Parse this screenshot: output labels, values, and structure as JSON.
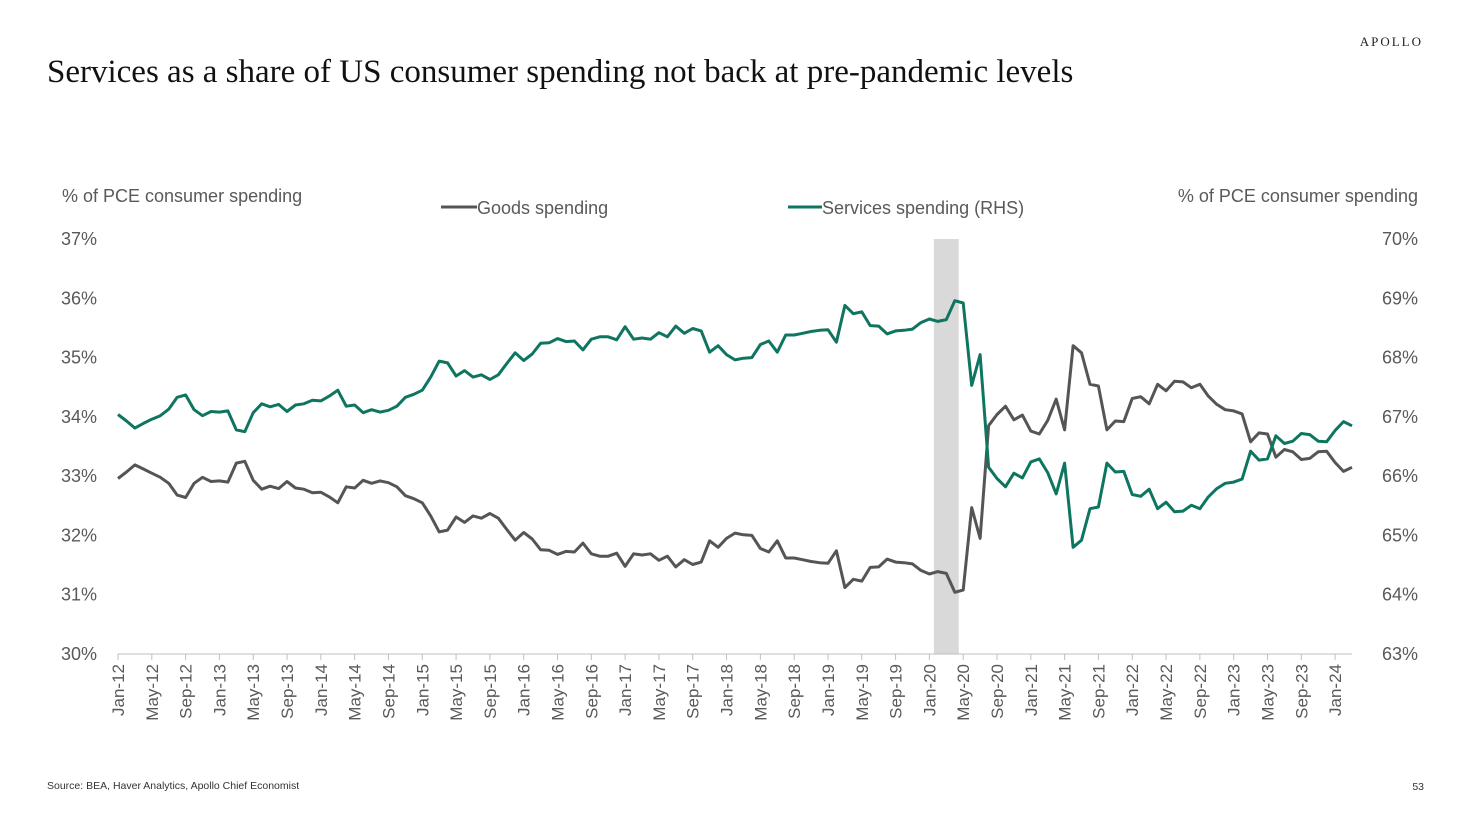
{
  "header": {
    "brand": "APOLLO",
    "title": "Services as a share of US consumer spending not back at pre-pandemic levels"
  },
  "footer": {
    "source": "Source: BEA, Haver Analytics, Apollo Chief Economist",
    "page_number": "53"
  },
  "chart_data": {
    "type": "line",
    "ylabel": "% of PCE consumer spending",
    "y2label": "% of PCE consumer spending",
    "ylim": [
      30,
      37
    ],
    "y2lim": [
      63,
      70
    ],
    "yticks": [
      "37%",
      "36%",
      "35%",
      "34%",
      "33%",
      "32%",
      "31%",
      "30%"
    ],
    "y2ticks": [
      "70%",
      "69%",
      "68%",
      "67%",
      "66%",
      "65%",
      "64%",
      "63%"
    ],
    "x_tick_labels": [
      "Jan-12",
      "May-12",
      "Sep-12",
      "Jan-13",
      "May-13",
      "Sep-13",
      "Jan-14",
      "May-14",
      "Sep-14",
      "Jan-15",
      "May-15",
      "Sep-15",
      "Jan-16",
      "May-16",
      "Sep-16",
      "Jan-17",
      "May-17",
      "Sep-17",
      "Jan-18",
      "May-18",
      "Sep-18",
      "Jan-19",
      "May-19",
      "Sep-19",
      "Jan-20",
      "May-20",
      "Sep-20",
      "Jan-21",
      "May-21",
      "Sep-21",
      "Jan-22",
      "May-22",
      "Sep-22",
      "Jan-23",
      "May-23",
      "Sep-23",
      "Jan-24"
    ],
    "x_start": "Jan-12",
    "recession_shading": [
      "Feb-20",
      "Apr-20"
    ],
    "grid": false,
    "legend": "top-center",
    "colors": {
      "goods": "#555555",
      "services": "#0e7560",
      "recession": "#d9d9d9",
      "axis": "#bfbfbf",
      "text": "#595959"
    },
    "series": [
      {
        "name": "Goods spending",
        "axis": "left",
        "color": "#555555",
        "values": [
          32.96,
          33.07,
          33.19,
          33.12,
          33.05,
          32.98,
          32.88,
          32.68,
          32.64,
          32.88,
          32.98,
          32.91,
          32.92,
          32.9,
          33.22,
          33.25,
          32.93,
          32.78,
          32.83,
          32.79,
          32.91,
          32.8,
          32.78,
          32.72,
          32.73,
          32.65,
          32.55,
          32.82,
          32.8,
          32.93,
          32.88,
          32.92,
          32.89,
          32.82,
          32.67,
          32.62,
          32.55,
          32.33,
          32.06,
          32.09,
          32.31,
          32.22,
          32.33,
          32.29,
          32.37,
          32.29,
          32.1,
          31.92,
          32.05,
          31.94,
          31.76,
          31.75,
          31.68,
          31.73,
          31.72,
          31.87,
          31.69,
          31.65,
          31.65,
          31.7,
          31.48,
          31.69,
          31.67,
          31.69,
          31.58,
          31.65,
          31.47,
          31.59,
          31.51,
          31.55,
          31.91,
          31.8,
          31.95,
          32.04,
          32.01,
          32.0,
          31.78,
          31.72,
          31.91,
          31.62,
          31.62,
          31.59,
          31.56,
          31.54,
          31.53,
          31.74,
          31.12,
          31.26,
          31.23,
          31.46,
          31.47,
          31.6,
          31.55,
          31.54,
          31.52,
          31.41,
          31.35,
          31.39,
          31.36,
          31.04,
          31.08,
          32.47,
          31.95,
          33.85,
          34.04,
          34.18,
          33.95,
          34.03,
          33.76,
          33.71,
          33.94,
          34.3,
          33.78,
          35.2,
          35.08,
          34.55,
          34.52,
          33.78,
          33.93,
          33.92,
          34.31,
          34.34,
          34.22,
          34.55,
          34.44,
          34.6,
          34.59,
          34.49,
          34.55,
          34.35,
          34.21,
          34.12,
          34.1,
          34.05,
          33.58,
          33.73,
          33.71,
          33.32,
          33.45,
          33.41,
          33.28,
          33.3,
          33.41,
          33.42,
          33.23,
          33.08,
          33.15
        ]
      },
      {
        "name": "Services spending (RHS)",
        "axis": "right",
        "color": "#0e7560",
        "values": [
          67.04,
          66.93,
          66.81,
          66.89,
          66.96,
          67.02,
          67.13,
          67.33,
          67.37,
          67.12,
          67.02,
          67.09,
          67.08,
          67.1,
          66.78,
          66.75,
          67.07,
          67.22,
          67.17,
          67.21,
          67.09,
          67.2,
          67.22,
          67.28,
          67.27,
          67.35,
          67.45,
          67.18,
          67.2,
          67.07,
          67.12,
          67.08,
          67.11,
          67.18,
          67.33,
          67.38,
          67.45,
          67.67,
          67.94,
          67.91,
          67.69,
          67.78,
          67.67,
          67.71,
          67.63,
          67.71,
          67.9,
          68.08,
          67.95,
          68.06,
          68.24,
          68.25,
          68.32,
          68.27,
          68.28,
          68.13,
          68.31,
          68.35,
          68.35,
          68.3,
          68.52,
          68.31,
          68.33,
          68.31,
          68.42,
          68.35,
          68.53,
          68.41,
          68.49,
          68.45,
          68.09,
          68.2,
          68.05,
          67.96,
          67.99,
          68.0,
          68.22,
          68.28,
          68.09,
          68.38,
          68.38,
          68.41,
          68.44,
          68.46,
          68.47,
          68.26,
          68.88,
          68.74,
          68.77,
          68.54,
          68.53,
          68.4,
          68.45,
          68.46,
          68.48,
          68.59,
          68.65,
          68.61,
          68.64,
          68.96,
          68.92,
          67.53,
          68.05,
          66.15,
          65.96,
          65.82,
          66.05,
          65.97,
          66.24,
          66.29,
          66.06,
          65.7,
          66.22,
          64.8,
          64.92,
          65.45,
          65.48,
          66.22,
          66.07,
          66.08,
          65.69,
          65.66,
          65.78,
          65.45,
          65.56,
          65.4,
          65.41,
          65.51,
          65.45,
          65.65,
          65.79,
          65.88,
          65.9,
          65.95,
          66.42,
          66.27,
          66.29,
          66.68,
          66.55,
          66.59,
          66.72,
          66.7,
          66.59,
          66.58,
          66.77,
          66.92,
          66.85
        ]
      }
    ]
  }
}
